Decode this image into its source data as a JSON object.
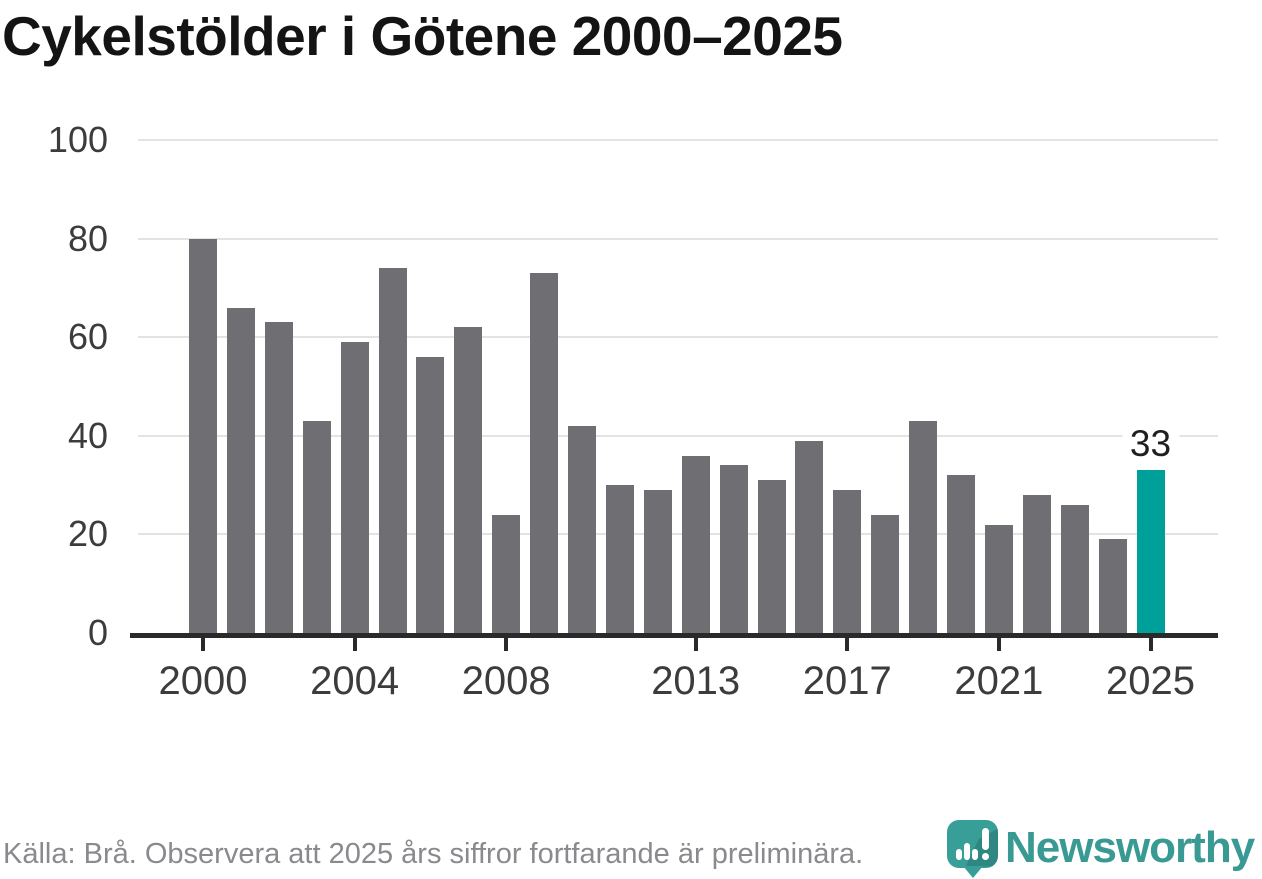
{
  "title": "Cykelstölder i Götene 2000–2025",
  "source_note": "Källa: Brå. Observera att 2025 års siffror fortfarande är preliminära.",
  "branding": {
    "wordmark": "Newsworthy",
    "logo_icon": "newsworthy-pin-icon"
  },
  "colors": {
    "bar": "#6F6E73",
    "highlight": "#00A09A",
    "grid": "#E3E3E3",
    "axis": "#2A2A2A",
    "tick_label": "#3C3C3C",
    "title_text": "#141414",
    "footer_text": "#8A8A8E",
    "logo": "#379E98"
  },
  "chart_data": {
    "type": "bar",
    "title": "Cykelstölder i Götene 2000–2025",
    "xlabel": "",
    "ylabel": "",
    "series_name": "Cykelstölder",
    "categories": [
      2000,
      2001,
      2002,
      2003,
      2004,
      2005,
      2006,
      2007,
      2008,
      2009,
      2010,
      2011,
      2012,
      2013,
      2014,
      2015,
      2016,
      2017,
      2018,
      2019,
      2020,
      2021,
      2022,
      2023,
      2024,
      2025
    ],
    "values": [
      80,
      66,
      63,
      43,
      59,
      74,
      56,
      62,
      24,
      73,
      42,
      30,
      29,
      36,
      34,
      31,
      39,
      29,
      24,
      43,
      32,
      22,
      28,
      26,
      19,
      33
    ],
    "ylim": [
      0,
      100
    ],
    "y_ticks": [
      0,
      20,
      40,
      60,
      80,
      100
    ],
    "x_tick_labels": [
      "2000",
      "2004",
      "2008",
      "2013",
      "2017",
      "2021",
      "2025"
    ],
    "grid": true,
    "legend_position": "none",
    "highlight": {
      "category": 2025,
      "value": 33,
      "label": "33"
    }
  }
}
